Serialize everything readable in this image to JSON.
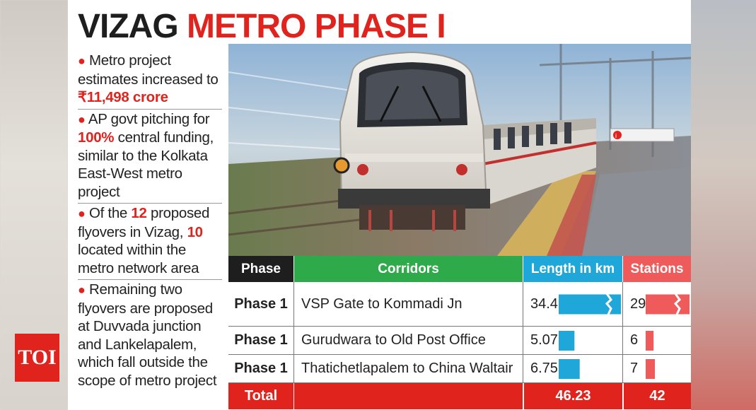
{
  "title": {
    "part1": "VIZAG",
    "part2": "METRO PHASE I"
  },
  "bullets": [
    {
      "pre": "Metro project estimates increased to ",
      "highlight": "₹11,498 crore",
      "post": ""
    },
    {
      "pre": "AP govt pitching for ",
      "highlight": "100%",
      "post": " central funding, similar to the Kolkata East-West metro project"
    },
    {
      "pre": "Of the ",
      "highlight": "12",
      "mid": " proposed flyovers in Vizag, ",
      "highlight2": "10",
      "post": " located within the metro network area"
    },
    {
      "pre": "Remaining two flyovers are proposed at Duvvada junction and Lankelapalem, which fall outside the scope of metro project",
      "highlight": "",
      "post": ""
    }
  ],
  "photo_sign": "i",
  "table": {
    "headers": {
      "phase": "Phase",
      "corridors": "Corridors",
      "length": "Length in km",
      "stations": "Stations"
    },
    "rows": [
      {
        "phase": "Phase 1",
        "corridor": "VSP Gate to Kommadi Jn",
        "length": "34.4",
        "stations": "29"
      },
      {
        "phase": "Phase 1",
        "corridor": "Gurudwara to Old Post Office",
        "length": "5.07",
        "stations": "6"
      },
      {
        "phase": "Phase 1",
        "corridor": "Thatichetlapalem to China Waltair",
        "length": "6.75",
        "stations": "7"
      }
    ],
    "total": {
      "label": "Total",
      "length": "46.23",
      "stations": "42"
    }
  },
  "chart_data": {
    "type": "bar",
    "categories": [
      "VSP Gate to Kommadi Jn",
      "Gurudwara to Old Post Office",
      "Thatichetlapalem to China Waltair"
    ],
    "series": [
      {
        "name": "Length in km",
        "values": [
          34.4,
          5.07,
          6.75
        ]
      },
      {
        "name": "Stations",
        "values": [
          29,
          6,
          7
        ]
      }
    ]
  },
  "logo": "TOI",
  "colors": {
    "red": "#e1231d",
    "green": "#2eaa4a",
    "blue": "#1ea7d8",
    "dark": "#1e1e1e",
    "bar_red": "#ef5b5b"
  }
}
